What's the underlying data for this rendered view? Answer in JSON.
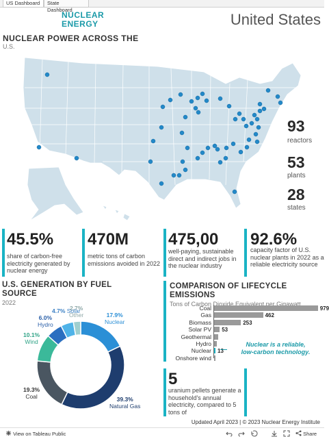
{
  "tabs": [
    "US Dashboard",
    "State Dashboard"
  ],
  "brand": {
    "line1": "NUCLEAR",
    "line2": "ENERGY"
  },
  "country": "United States",
  "map": {
    "title": "NUCLEAR POWER ACROSS THE",
    "subtitle": "U.S."
  },
  "big_stats": [
    {
      "value": "93",
      "label": "reactors"
    },
    {
      "value": "53",
      "label": "plants"
    },
    {
      "value": "28",
      "label": "states"
    }
  ],
  "stats": [
    {
      "value": "45.5%",
      "desc": "share of carbon-free electricity generated by nuclear energy"
    },
    {
      "value": "470M",
      "desc": "metric tons of carbon emissions avoided in 2022"
    },
    {
      "value": "475,00",
      "desc": "well-paying, sustainable direct and indirect jobs in the nuclear industry"
    },
    {
      "value": "92.6%",
      "desc": "capacity factor of U.S. nuclear plants in 2022 as a reliable electricity source"
    }
  ],
  "generation": {
    "title_line1": "U.S. GENERATION BY FUEL",
    "title_line2": "SOURCE",
    "subtitle": "2022"
  },
  "lifecycle": {
    "title_line1": "COMPARISON OF LIFECYCLE",
    "title_line2": "EMISSIONS",
    "subtitle": "Tons of Carbon Dioxide Equivalent per Gigawatt",
    "callout_line1": "Nuclear is a reliable,",
    "callout_line2": "low-carbon technology."
  },
  "uranium": {
    "value": "5",
    "desc": "uranium pellets generate a household's annual electricity, compared to 5 tons of"
  },
  "footer": {
    "credit": "Updated April 2023 | © 2023 Nuclear Energy Institute",
    "view_on_tableau": "View on Tableau Public",
    "share": "Share"
  },
  "colors": {
    "accent": "#1ab3c4",
    "brand": "#1b9aa8",
    "map_fill": "#cfe0ea",
    "plant_dot": "#2389c8"
  },
  "icons": {
    "tableau": "tableau-icon",
    "undo": "undo-icon",
    "redo": "redo-icon",
    "revert": "revert-icon",
    "download": "download-icon",
    "fullscreen": "fullscreen-icon",
    "share": "share-icon"
  },
  "chart_data": [
    {
      "type": "pie",
      "title": "U.S. GENERATION BY FUEL SOURCE",
      "subtitle": "2022",
      "donut": true,
      "slices": [
        {
          "label": "Nuclear",
          "value": 17.9,
          "pct": "17.9%",
          "color": "#2b8fd6"
        },
        {
          "label": "Natural Gas",
          "value": 39.3,
          "pct": "39.3%",
          "color": "#1e3d6e"
        },
        {
          "label": "Coal",
          "value": 19.3,
          "pct": "19.3%",
          "color": "#4a5661"
        },
        {
          "label": "Wind",
          "value": 10.1,
          "pct": "10.1%",
          "color": "#3bb99a"
        },
        {
          "label": "Hydro",
          "value": 6.0,
          "pct": "6.0%",
          "color": "#2a6fc0"
        },
        {
          "label": "Solar",
          "value": 4.7,
          "pct": "4.7%",
          "color": "#4fb3e8"
        },
        {
          "label": "Other",
          "value": 2.7,
          "pct": "2.7%",
          "color": "#9fcfcf"
        }
      ]
    },
    {
      "type": "bar",
      "orientation": "horizontal",
      "title": "COMPARISON OF LIFECYCLE EMISSIONS",
      "subtitle": "Tons of Carbon Dioxide Equivalent per Gigawatt",
      "categories": [
        "Coal",
        "Gas",
        "Biomass",
        "Solar PV",
        "Geothermal",
        "Hydro",
        "Nuclear",
        "Onshore wind"
      ],
      "values": [
        979,
        462,
        253,
        53,
        null,
        null,
        13,
        null
      ],
      "value_labels": [
        "979",
        "462",
        "253",
        "53",
        "",
        "",
        "13",
        ""
      ],
      "estimated_values": [
        979,
        462,
        253,
        53,
        37,
        28,
        13,
        12
      ],
      "highlight": "Nuclear",
      "xlim": [
        0,
        1000
      ]
    }
  ]
}
